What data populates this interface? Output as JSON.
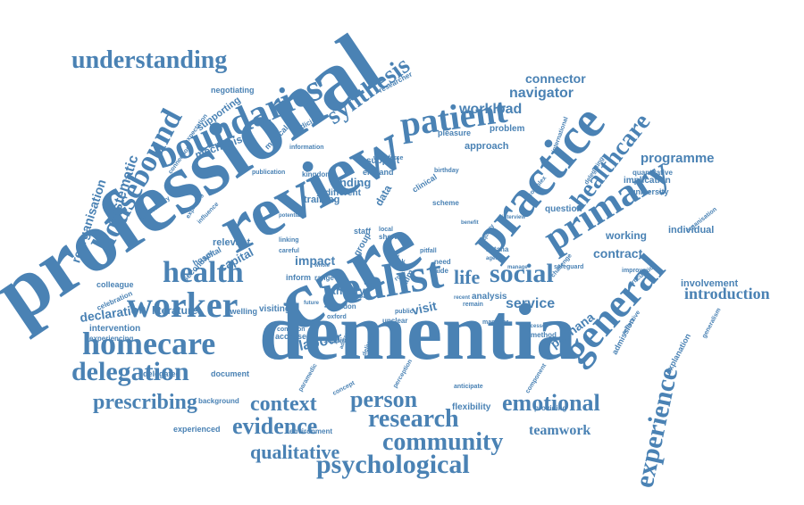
{
  "wordcloud": {
    "color": "#4a82b4",
    "words": [
      {
        "id": "professional",
        "text": "professional"
      },
      {
        "id": "care",
        "text": "care"
      },
      {
        "id": "review",
        "text": "review"
      },
      {
        "id": "dementia",
        "text": "dementia"
      },
      {
        "id": "realist",
        "text": "realist"
      },
      {
        "id": "boundaries",
        "text": "boundaries"
      },
      {
        "id": "practice",
        "text": "practice"
      },
      {
        "id": "primary",
        "text": "primary"
      },
      {
        "id": "general",
        "text": "general"
      },
      {
        "id": "patient",
        "text": "patient"
      },
      {
        "id": "health",
        "text": "health"
      },
      {
        "id": "worker",
        "text": "worker"
      },
      {
        "id": "homecare",
        "text": "homecare"
      },
      {
        "id": "delegation",
        "text": "delegation"
      },
      {
        "id": "social",
        "text": "social"
      },
      {
        "id": "understanding",
        "text": "understanding"
      },
      {
        "id": "housebound",
        "text": "housebound"
      },
      {
        "id": "healthcare",
        "text": "healthcare"
      },
      {
        "id": "experience",
        "text": "experience"
      },
      {
        "id": "psychological",
        "text": "psychological"
      },
      {
        "id": "community",
        "text": "community"
      },
      {
        "id": "research",
        "text": "research"
      },
      {
        "id": "emotional",
        "text": "emotional"
      },
      {
        "id": "evidence",
        "text": "evidence"
      },
      {
        "id": "context",
        "text": "context"
      },
      {
        "id": "person",
        "text": "person"
      },
      {
        "id": "prescribing",
        "text": "prescribing"
      },
      {
        "id": "qualitative",
        "text": "qualitative"
      },
      {
        "id": "synthesis",
        "text": "synthesis"
      },
      {
        "id": "introduction",
        "text": "introduction"
      },
      {
        "id": "teamwork",
        "text": "teamwork"
      },
      {
        "id": "life",
        "text": "life"
      },
      {
        "id": "programme",
        "text": "programme"
      },
      {
        "id": "navigator",
        "text": "navigator"
      },
      {
        "id": "workload",
        "text": "workload"
      },
      {
        "id": "connector",
        "text": "connector"
      },
      {
        "id": "systematic",
        "text": "systematic"
      },
      {
        "id": "reorganisation",
        "text": "reorganisation"
      },
      {
        "id": "declaration",
        "text": "declaration"
      },
      {
        "id": "contract",
        "text": "contract"
      },
      {
        "id": "service",
        "text": "service"
      },
      {
        "id": "impact",
        "text": "impact"
      },
      {
        "id": "labour",
        "text": "labour"
      },
      {
        "id": "visit",
        "text": "visit"
      },
      {
        "id": "working",
        "text": "working"
      },
      {
        "id": "pachana",
        "text": "pachana"
      },
      {
        "id": "capital",
        "text": "capital"
      },
      {
        "id": "literature",
        "text": "literature"
      },
      {
        "id": "finding",
        "text": "finding"
      },
      {
        "id": "theory",
        "text": "theory"
      },
      {
        "id": "mechanism",
        "text": "mechanism"
      },
      {
        "id": "intervention",
        "text": "intervention"
      },
      {
        "id": "individual",
        "text": "individual"
      },
      {
        "id": "involvement",
        "text": "involvement"
      },
      {
        "id": "approach",
        "text": "approach"
      },
      {
        "id": "question",
        "text": "question"
      },
      {
        "id": "problem",
        "text": "problem"
      },
      {
        "id": "relevant",
        "text": "relevant"
      },
      {
        "id": "flexibility",
        "text": "flexibility"
      },
      {
        "id": "providing",
        "text": "providing"
      },
      {
        "id": "visiting",
        "text": "visiting"
      },
      {
        "id": "negotiating",
        "text": "negotiating"
      },
      {
        "id": "supporting",
        "text": "supporting"
      },
      {
        "id": "implication",
        "text": "implication"
      },
      {
        "id": "university",
        "text": "university"
      },
      {
        "id": "quantitative",
        "text": "quantitative"
      },
      {
        "id": "training",
        "text": "training"
      },
      {
        "id": "different",
        "text": "different"
      },
      {
        "id": "support",
        "text": "support"
      },
      {
        "id": "england",
        "text": "england"
      },
      {
        "id": "analysis",
        "text": "analysis"
      },
      {
        "id": "colleague",
        "text": "colleague"
      },
      {
        "id": "pleasure",
        "text": "pleasure"
      },
      {
        "id": "delegated",
        "text": "delegated"
      },
      {
        "id": "document",
        "text": "document"
      },
      {
        "id": "background",
        "text": "background"
      },
      {
        "id": "experienced",
        "text": "experienced"
      },
      {
        "id": "environment",
        "text": "environment"
      },
      {
        "id": "experiencing",
        "text": "experiencing"
      },
      {
        "id": "celebration",
        "text": "celebration"
      },
      {
        "id": "hospital",
        "text": "hospital"
      },
      {
        "id": "secondary",
        "text": "secondary"
      },
      {
        "id": "dwelling",
        "text": "dwelling"
      },
      {
        "id": "accessed",
        "text": "accessed"
      },
      {
        "id": "condition",
        "text": "condition"
      },
      {
        "id": "scoping",
        "text": "scoping"
      },
      {
        "id": "london",
        "text": "london"
      },
      {
        "id": "inform",
        "text": "inform"
      },
      {
        "id": "medicine",
        "text": "medicine"
      },
      {
        "id": "medical",
        "text": "medical"
      },
      {
        "id": "information",
        "text": "information"
      },
      {
        "id": "publication",
        "text": "publication"
      },
      {
        "id": "kingdom",
        "text": "kingdom"
      },
      {
        "id": "researcher",
        "text": "researcher"
      },
      {
        "id": "workforce",
        "text": "workforce"
      },
      {
        "id": "birthday",
        "text": "birthday"
      },
      {
        "id": "clinical",
        "text": "clinical"
      },
      {
        "id": "scheme",
        "text": "scheme"
      },
      {
        "id": "need",
        "text": "need"
      },
      {
        "id": "aide",
        "text": "aide"
      },
      {
        "id": "link",
        "text": "link"
      },
      {
        "id": "short",
        "text": "short"
      },
      {
        "id": "local",
        "text": "local"
      },
      {
        "id": "staff",
        "text": "staff"
      },
      {
        "id": "remain",
        "text": "remain"
      },
      {
        "id": "unclear",
        "text": "unclear"
      },
      {
        "id": "manager",
        "text": "manager"
      },
      {
        "id": "method",
        "text": "method"
      },
      {
        "id": "anticipate",
        "text": "anticipate"
      },
      {
        "id": "concept",
        "text": "concept"
      },
      {
        "id": "paramedic",
        "text": "paramedic"
      },
      {
        "id": "perception",
        "text": "perception"
      },
      {
        "id": "component",
        "text": "component"
      },
      {
        "id": "admission",
        "text": "admission"
      },
      {
        "id": "explanation",
        "text": "explanation"
      },
      {
        "id": "reflective",
        "text": "reflective"
      },
      {
        "id": "generalism",
        "text": "generalism"
      },
      {
        "id": "articulation",
        "text": "articulation"
      },
      {
        "id": "improve",
        "text": "improve"
      },
      {
        "id": "organisation",
        "text": "organisation"
      },
      {
        "id": "safeguard",
        "text": "safeguard"
      },
      {
        "id": "challenge",
        "text": "challenge"
      },
      {
        "id": "delegating",
        "text": "delegating"
      },
      {
        "id": "international",
        "text": "international"
      },
      {
        "id": "complex",
        "text": "complex"
      },
      {
        "id": "interview",
        "text": "interview"
      },
      {
        "id": "exploring",
        "text": "exploring"
      },
      {
        "id": "influence",
        "text": "influence"
      },
      {
        "id": "potential",
        "text": "potential"
      },
      {
        "id": "anniversary",
        "text": "anniversary"
      },
      {
        "id": "connection",
        "text": "connection"
      },
      {
        "id": "expectation",
        "text": "expectation"
      },
      {
        "id": "astana",
        "text": "astana"
      },
      {
        "id": "ageing",
        "text": "ageing"
      },
      {
        "id": "manage",
        "text": "manage"
      },
      {
        "id": "processes",
        "text": "processes"
      },
      {
        "id": "quality",
        "text": "quality"
      },
      {
        "id": "benefit",
        "text": "benefit"
      },
      {
        "id": "careful",
        "text": "careful"
      },
      {
        "id": "linking",
        "text": "linking"
      },
      {
        "id": "range",
        "text": "range"
      },
      {
        "id": "causal",
        "text": "causal"
      },
      {
        "id": "public",
        "text": "public"
      },
      {
        "id": "recent",
        "text": "recent"
      },
      {
        "id": "way",
        "text": "way"
      },
      {
        "id": "group",
        "text": "group"
      },
      {
        "id": "data",
        "text": "data"
      },
      {
        "id": "role",
        "text": "role"
      },
      {
        "id": "aim",
        "text": "aim"
      },
      {
        "id": "oxford",
        "text": "oxford"
      },
      {
        "id": "pitfall",
        "text": "pitfall"
      },
      {
        "id": "delivery",
        "text": "delivery"
      },
      {
        "id": "address",
        "text": "address"
      },
      {
        "id": "future",
        "text": "future"
      },
      {
        "id": "whole",
        "text": "whole"
      }
    ]
  }
}
